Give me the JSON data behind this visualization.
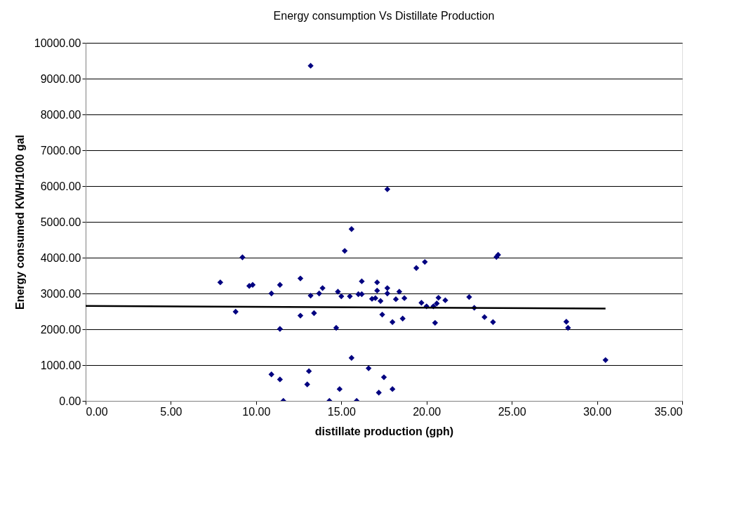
{
  "chart_data": {
    "type": "scatter",
    "title": "Energy consumption Vs Distillate Production",
    "xlabel": "distillate production (gph)",
    "ylabel": "Energy consumed KWH/1000 gal",
    "xlim": [
      0,
      35
    ],
    "ylim": [
      0,
      10000
    ],
    "xticks": [
      {
        "value": 0,
        "label": "0.00"
      },
      {
        "value": 5,
        "label": "5.00"
      },
      {
        "value": 10,
        "label": "10.00"
      },
      {
        "value": 15,
        "label": "15.00"
      },
      {
        "value": 20,
        "label": "20.00"
      },
      {
        "value": 25,
        "label": "25.00"
      },
      {
        "value": 30,
        "label": "30.00"
      },
      {
        "value": 35,
        "label": "35.00"
      }
    ],
    "yticks": [
      {
        "value": 0,
        "label": "0.00"
      },
      {
        "value": 1000,
        "label": "1000.00"
      },
      {
        "value": 2000,
        "label": "2000.00"
      },
      {
        "value": 3000,
        "label": "3000.00"
      },
      {
        "value": 4000,
        "label": "4000.00"
      },
      {
        "value": 5000,
        "label": "5000.00"
      },
      {
        "value": 6000,
        "label": "6000.00"
      },
      {
        "value": 7000,
        "label": "7000.00"
      },
      {
        "value": 8000,
        "label": "8000.00"
      },
      {
        "value": 9000,
        "label": "9000.00"
      },
      {
        "value": 10000,
        "label": "10000.00"
      }
    ],
    "grid": "y",
    "marker": "diamond",
    "series": [
      {
        "color": "#000080",
        "x": [
          7.9,
          9.2,
          8.8,
          9.6,
          9.8,
          10.9,
          11.4,
          11.4,
          10.9,
          11.4,
          11.6,
          12.6,
          12.6,
          13.2,
          13.4,
          13.7,
          13.9,
          13.1,
          13.0,
          14.3,
          14.7,
          14.8,
          15.0,
          15.5,
          15.2,
          14.9,
          15.6,
          15.9,
          16.0,
          16.2,
          16.2,
          16.6,
          16.8,
          17.0,
          17.1,
          17.1,
          17.3,
          17.4,
          17.7,
          17.7,
          17.2,
          17.5,
          18.0,
          18.0,
          18.2,
          18.4,
          18.6,
          18.7,
          19.4,
          19.9,
          19.7,
          20.0,
          20.4,
          20.5,
          20.6,
          20.7,
          21.1,
          22.5,
          22.8,
          23.4,
          23.9,
          24.1,
          24.2,
          28.2,
          28.3,
          30.5,
          13.2,
          17.7,
          15.6
        ],
        "values": [
          3310,
          4010,
          2490,
          3210,
          3240,
          3000,
          3240,
          2010,
          740,
          600,
          0,
          3420,
          2380,
          2940,
          2450,
          3000,
          3150,
          830,
          460,
          0,
          2040,
          3050,
          2920,
          2920,
          4190,
          330,
          1200,
          0,
          2980,
          2980,
          3340,
          910,
          2850,
          2870,
          3310,
          3080,
          2790,
          2410,
          3150,
          3000,
          230,
          660,
          2200,
          330,
          2840,
          3050,
          2300,
          2870,
          3710,
          3880,
          2740,
          2640,
          2640,
          2180,
          2720,
          2880,
          2810,
          2900,
          2600,
          2340,
          2200,
          4020,
          4080,
          2210,
          2040,
          1140,
          9360,
          5910,
          4800
        ]
      },
      {
        "type": "line",
        "marker": "none",
        "line_style": "solid",
        "color": "#000000",
        "x": [
          0,
          30.5
        ],
        "values": [
          2650,
          2580
        ]
      }
    ]
  }
}
